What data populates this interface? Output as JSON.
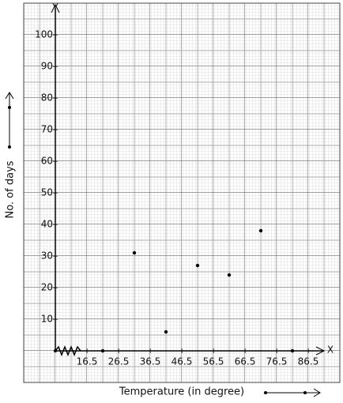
{
  "chart_data": {
    "type": "line",
    "x_label": "Temperature (in degree)",
    "y_label": "No. of days",
    "x_axis_name": "X",
    "y_axis_name": "Y",
    "series": [
      {
        "name": "No. of days",
        "color": "#000000",
        "x": [
          21.5,
          31.5,
          41.5,
          51.5,
          61.5,
          71.5,
          81.5
        ],
        "values": [
          0,
          31,
          6,
          27,
          24,
          38,
          0
        ]
      }
    ],
    "xlim": [
      6.5,
      91.5
    ],
    "xticks": [
      16.5,
      26.5,
      36.5,
      46.5,
      56.5,
      66.5,
      76.5,
      86.5
    ],
    "ylim": [
      0,
      108.5
    ],
    "yticks": [
      10,
      20,
      30,
      40,
      50,
      60,
      70,
      80,
      90,
      100
    ],
    "grid": true
  }
}
